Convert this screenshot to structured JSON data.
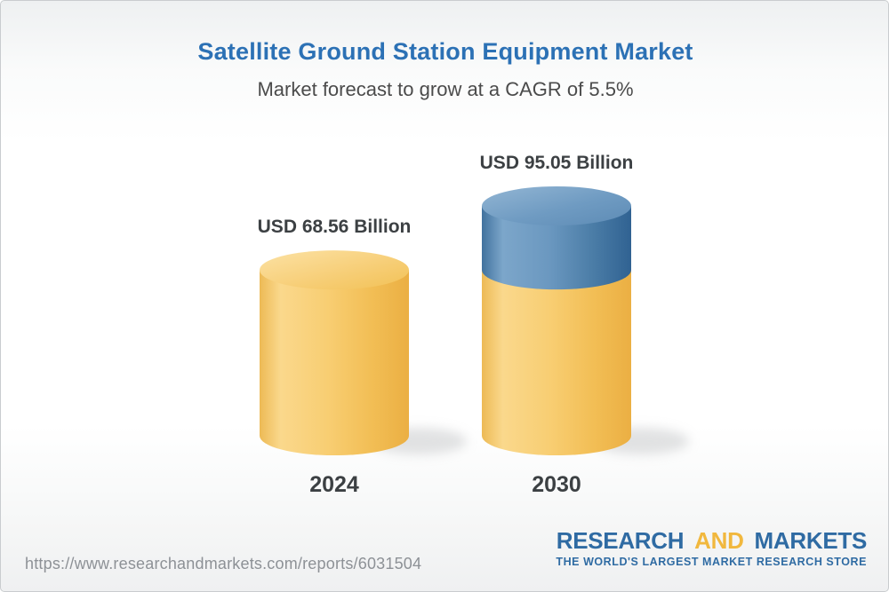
{
  "header": {
    "title": "Satellite Ground Station Equipment Market",
    "subtitle": "Market forecast to grow at a CAGR of 5.5%"
  },
  "chart_data": {
    "type": "bar",
    "variant": "3d-cylinder",
    "title": "Satellite Ground Station Equipment Market",
    "subtitle": "Market forecast to grow at a CAGR of 5.5%",
    "cagr_percent": 5.5,
    "unit": "USD Billion",
    "categories": [
      "2024",
      "2030"
    ],
    "values": [
      68.56,
      95.05
    ],
    "value_labels": [
      "USD 68.56 Billion",
      "USD 95.05 Billion"
    ],
    "legend": "none",
    "grid": false,
    "colors": {
      "base_segment": "#F6C765",
      "growth_segment": "#5E8CB6",
      "title": "#2C71B5",
      "text": "#3C4043"
    }
  },
  "footer": {
    "source_url": "https://www.researchandmarkets.com/reports/6031504",
    "logo": {
      "word1": "RESEARCH",
      "word2": "AND",
      "word3": "MARKETS",
      "tagline": "THE WORLD'S LARGEST MARKET RESEARCH STORE",
      "blue": "#2F6BA3",
      "yellow": "#F1B83E"
    }
  }
}
